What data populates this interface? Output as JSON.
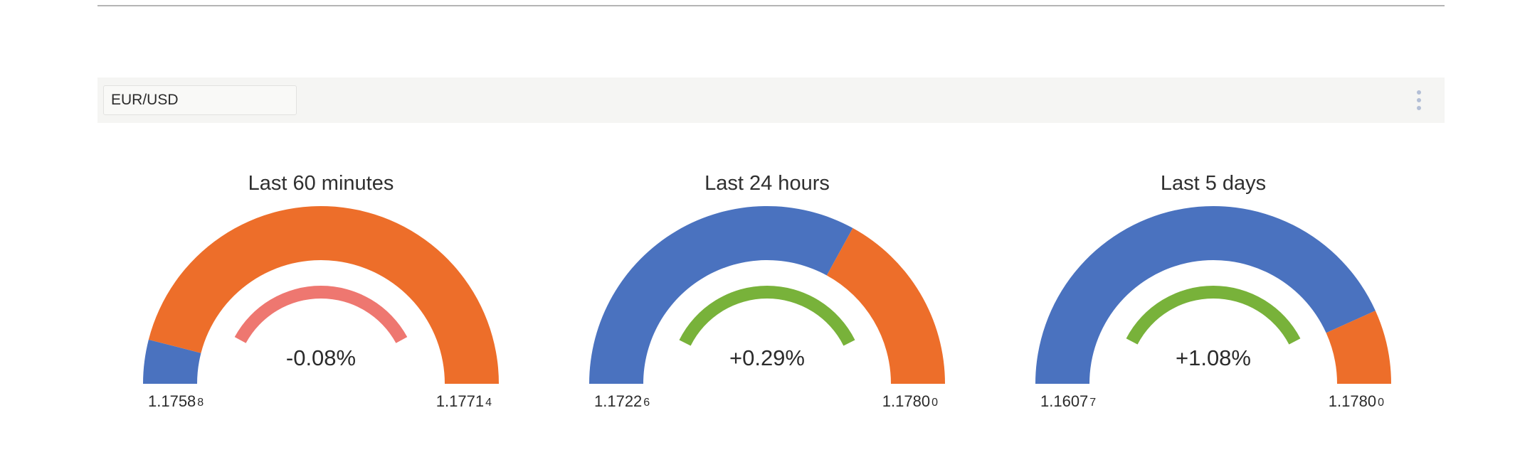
{
  "toolbar": {
    "pair": "EUR/USD",
    "menu_icon": "kebab-menu-icon"
  },
  "colors": {
    "below_current": "#4a72bf",
    "above_current": "#ed6e2a",
    "negative_change": "#ee7770",
    "positive_change": "#78b23a"
  },
  "chart_data": [
    {
      "type": "gauge",
      "title": "Last 60 minutes",
      "low": {
        "main": "1.1758",
        "pip": "8",
        "value": 1.17588
      },
      "high": {
        "main": "1.1771",
        "pip": "4",
        "value": 1.17714
      },
      "current_fraction": 0.08,
      "change_label": "-0.08%",
      "change_value": -0.08,
      "change_arc_sweep_deg": 123
    },
    {
      "type": "gauge",
      "title": "Last 24 hours",
      "low": {
        "main": "1.1722",
        "pip": "6",
        "value": 1.17226
      },
      "high": {
        "main": "1.1780",
        "pip": "0",
        "value": 1.178
      },
      "current_fraction": 0.66,
      "change_label": "+0.29%",
      "change_value": 0.29,
      "change_arc_sweep_deg": 127
    },
    {
      "type": "gauge",
      "title": "Last 5 days",
      "low": {
        "main": "1.1607",
        "pip": "7",
        "value": 1.16077
      },
      "high": {
        "main": "1.1780",
        "pip": "0",
        "value": 1.178
      },
      "current_fraction": 0.865,
      "change_label": "+1.08%",
      "change_value": 1.08,
      "change_arc_sweep_deg": 125
    }
  ]
}
